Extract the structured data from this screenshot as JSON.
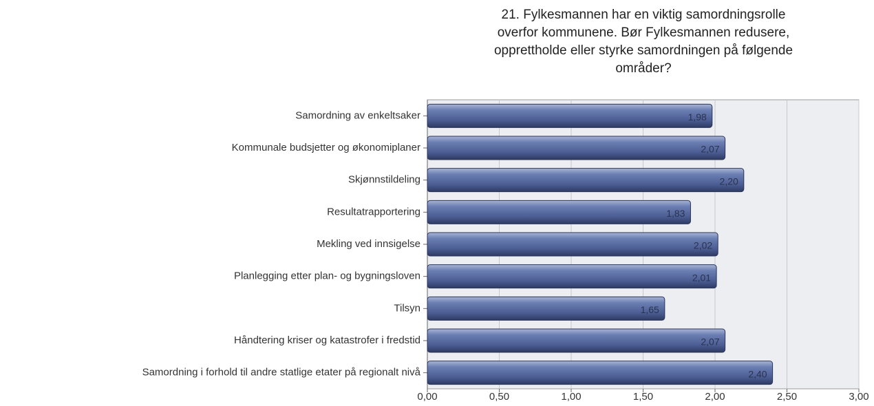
{
  "chart_data": {
    "type": "bar",
    "orientation": "horizontal",
    "title": [
      "21. Fylkesmannen har en viktig samordningsrolle",
      "overfor kommunene. Bør Fylkesmannen redusere,",
      "opprettholde eller styrke samordningen på følgende",
      "områder?"
    ],
    "categories": [
      "Samordning av enkeltsaker",
      "Kommunale budsjetter og økonomiplaner",
      "Skjønnstildeling",
      "Resultatrapportering",
      "Mekling ved innsigelse",
      "Planlegging etter plan- og bygningsloven",
      "Tilsyn",
      "Håndtering kriser og katastrofer i fredstid",
      "Samordning i forhold til andre statlige etater på regionalt nivå"
    ],
    "values": [
      1.98,
      2.07,
      2.2,
      1.83,
      2.02,
      2.01,
      1.65,
      2.07,
      2.4
    ],
    "value_labels": [
      "1,98",
      "2,07",
      "2,20",
      "1,83",
      "2,02",
      "2,01",
      "1,65",
      "2,07",
      "2,40"
    ],
    "color": "#4f6298",
    "xlim": [
      0,
      3
    ],
    "xticks": [
      {
        "value": 0,
        "label": "0,00"
      },
      {
        "value": 0.5,
        "label": "0,50"
      },
      {
        "value": 1,
        "label": "1,00"
      },
      {
        "value": 1.5,
        "label": "1,50"
      },
      {
        "value": 2,
        "label": "2,00"
      },
      {
        "value": 2.5,
        "label": "2,50"
      },
      {
        "value": 3,
        "label": "3,00"
      }
    ],
    "grid": true
  }
}
